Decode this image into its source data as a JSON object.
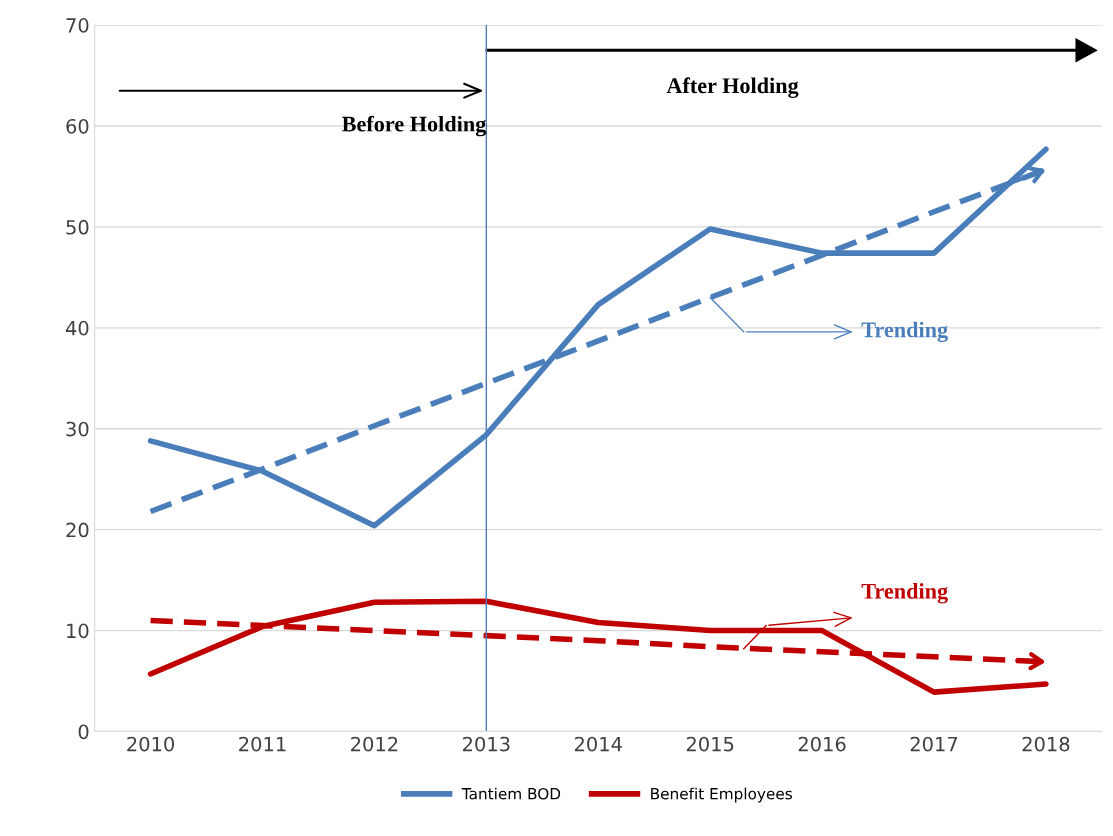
{
  "chart_data": {
    "type": "line",
    "categories": [
      "2010",
      "2011",
      "2012",
      "2013",
      "2014",
      "2015",
      "2016",
      "2017",
      "2018"
    ],
    "series": [
      {
        "name": "Tantiem BOD",
        "color": "#4a7ebb",
        "values": [
          28.8,
          25.8,
          20.4,
          29.4,
          42.3,
          49.8,
          47.4,
          47.4,
          57.7
        ]
      },
      {
        "name": "Benefit Employees",
        "color": "#c00000",
        "values": [
          5.7,
          10.4,
          12.8,
          12.9,
          10.8,
          10.0,
          10.0,
          3.9,
          4.7
        ]
      },
      {
        "color": "#4a7ebb",
        "line_style": "dashed",
        "values": [
          21.8,
          26.0,
          30.3,
          34.5,
          38.7,
          43.0,
          47.2,
          51.5,
          55.7
        ]
      },
      {
        "color": "#c00000",
        "line_style": "dashed",
        "values": [
          11.0,
          10.5,
          10.0,
          9.5,
          9.0,
          8.4,
          7.9,
          7.4,
          6.9
        ]
      }
    ],
    "ylim": [
      0,
      70
    ],
    "yticks": [
      0,
      10,
      20,
      30,
      40,
      50,
      60,
      70
    ],
    "grid": "y",
    "legend": "bottom",
    "line_style": "solid",
    "marker": "none",
    "ref_lines": [
      {
        "axis": "x",
        "value": "2013",
        "color": "#4a7ebb"
      }
    ],
    "annotations": [
      "Before Holding",
      "After Holding",
      "Trending",
      {
        "text": "Trending",
        "y": 8.2
      }
    ]
  }
}
